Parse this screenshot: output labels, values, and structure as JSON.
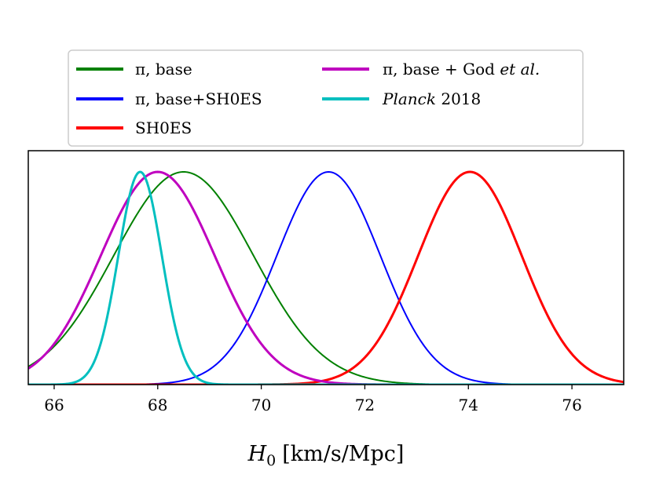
{
  "chart_data": {
    "type": "line",
    "title": "",
    "xlabel": "H_0 [km/s/Mpc]",
    "xlabel_parts": {
      "var": "H",
      "sub": "0",
      "unit": "[km/s/Mpc]"
    },
    "ylabel": "",
    "xlim": [
      65.5,
      77.0
    ],
    "ylim": [
      0,
      1.0
    ],
    "grid": false,
    "legend_placement": "top-center, outside",
    "xticks": [
      66,
      68,
      70,
      72,
      74,
      76
    ],
    "xtick_labels": [
      "66",
      "68",
      "70",
      "72",
      "74",
      "76"
    ],
    "series": [
      {
        "name": "π, base",
        "legend_parts": [
          "π, base"
        ],
        "shape": "gaussian",
        "mean": 68.5,
        "sigma": 1.35,
        "color": "#008000",
        "linewidth": 2
      },
      {
        "name": "π, base+SH0ES",
        "legend_parts": [
          "π, base+SH0ES"
        ],
        "shape": "gaussian",
        "mean": 71.3,
        "sigma": 1.0,
        "color": "#0000ff",
        "linewidth": 2
      },
      {
        "name": "SH0ES",
        "legend_parts": [
          "SH0ES"
        ],
        "shape": "gaussian",
        "mean": 74.03,
        "sigma": 1.0,
        "color": "#ff0000",
        "linewidth": 3
      },
      {
        "name": "π, base + God et al.",
        "legend_parts": [
          "π, base + God ",
          "et al."
        ],
        "shape": "gaussian",
        "mean": 68.0,
        "sigma": 1.1,
        "color": "#bf00bf",
        "linewidth": 3
      },
      {
        "name": "Planck 2018",
        "legend_parts": [
          "Planck",
          " 2018"
        ],
        "shape": "gaussian",
        "mean": 67.66,
        "sigma": 0.42,
        "color": "#00bfbf",
        "linewidth": 3
      }
    ]
  }
}
